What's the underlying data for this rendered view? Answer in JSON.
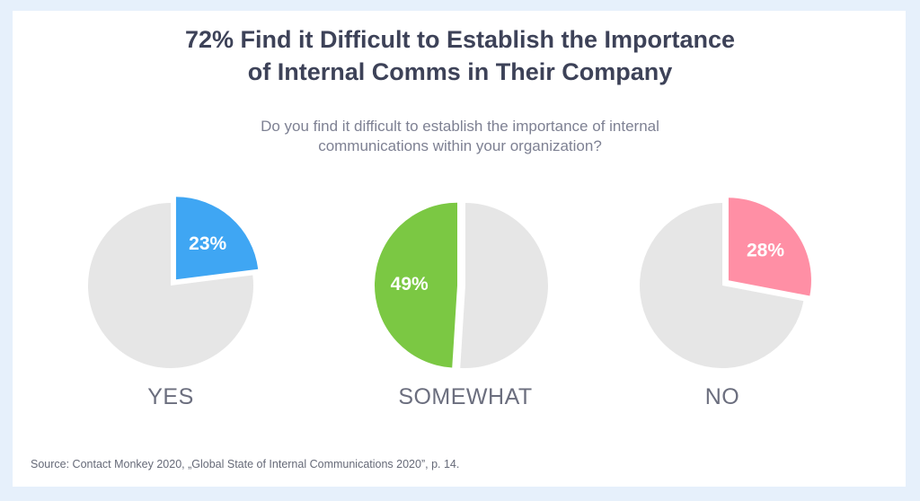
{
  "title": {
    "line1": "72% Find it Difficult to Establish the Importance",
    "line2": "of Internal Comms in Their Company"
  },
  "subtitle": {
    "line1": "Do you find it difficult to establish the importance of internal",
    "line2": "communications within your organization?"
  },
  "chart_data": {
    "type": "pie",
    "title": "72% Find it Difficult to Establish the Importance of Internal Comms in Their Company",
    "subtitle": "Do you find it difficult to establish the importance of internal communications within your organization?",
    "categories": [
      "YES",
      "SOMEWHAT",
      "NO"
    ],
    "values": [
      23,
      49,
      28
    ],
    "labels": [
      "23%",
      "49%",
      "28%"
    ],
    "colors": [
      "#3fa6f3",
      "#7bc843",
      "#ff8fa5"
    ],
    "remainder_color": "#e6e6e6",
    "exploded_side": [
      "right",
      "left",
      "right"
    ]
  },
  "source": "Source: Contact Monkey 2020, „Global State of Internal Communications 2020”, p. 14."
}
